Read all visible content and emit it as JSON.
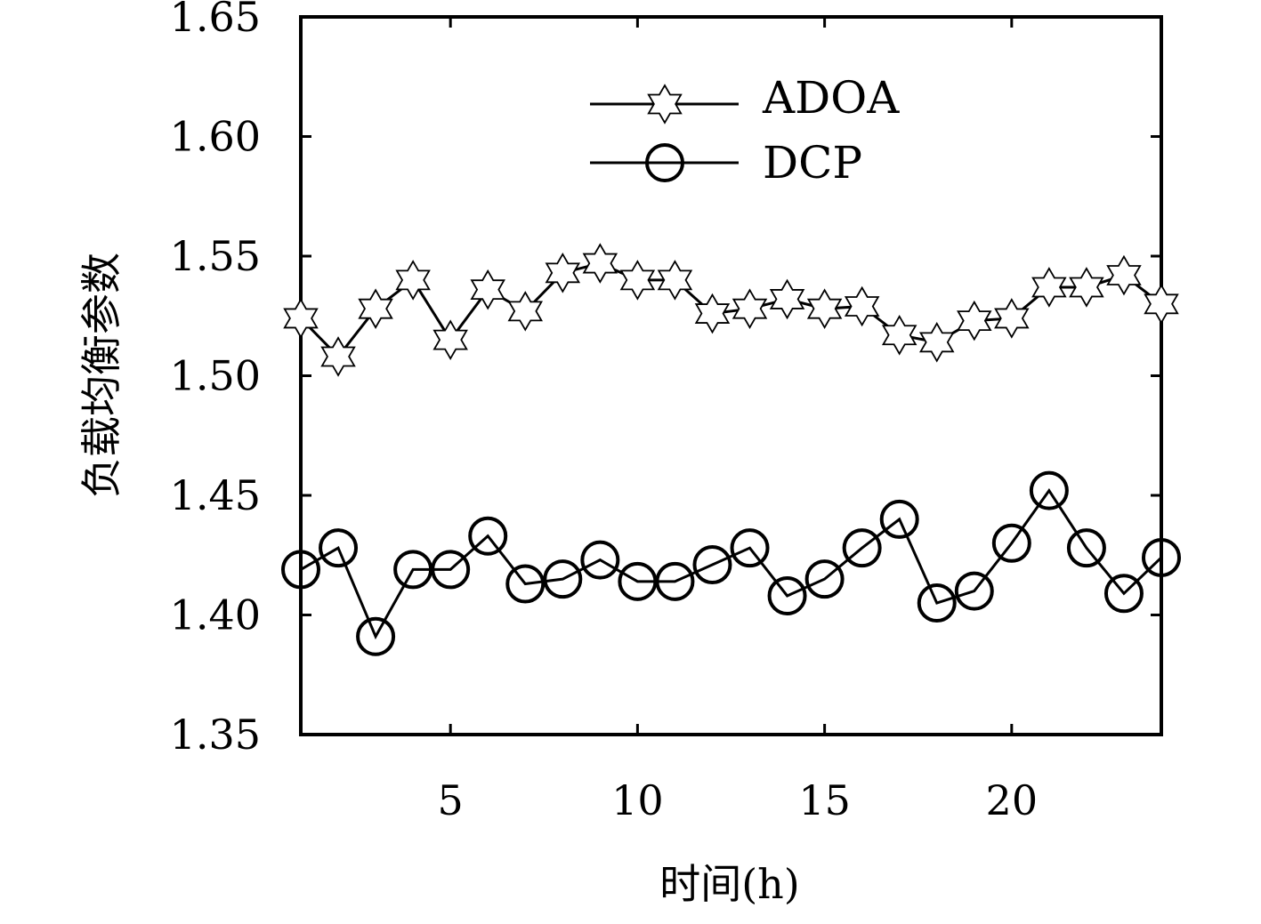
{
  "chart_data": {
    "type": "line",
    "title": "",
    "xlabel": "时间(h)",
    "ylabel": "负载均衡参数",
    "xlim": [
      1,
      24
    ],
    "ylim": [
      1.35,
      1.65
    ],
    "xticks": [
      5,
      10,
      15,
      20
    ],
    "yticks": [
      1.35,
      1.4,
      1.45,
      1.5,
      1.55,
      1.6,
      1.65
    ],
    "xtick_labels": [
      "5",
      "10",
      "15",
      "20"
    ],
    "ytick_labels": [
      "1.35",
      "1.40",
      "1.45",
      "1.50",
      "1.55",
      "1.60",
      "1.65"
    ],
    "grid": false,
    "legend_position": "top-center",
    "x": [
      1,
      2,
      3,
      4,
      5,
      6,
      7,
      8,
      9,
      10,
      11,
      12,
      13,
      14,
      15,
      16,
      17,
      18,
      19,
      20,
      21,
      22,
      23,
      24
    ],
    "series": [
      {
        "name": "ADOA",
        "marker": "hexagram",
        "color": "#000000",
        "values": [
          1.524,
          1.508,
          1.528,
          1.54,
          1.515,
          1.536,
          1.527,
          1.543,
          1.547,
          1.54,
          1.54,
          1.526,
          1.528,
          1.532,
          1.528,
          1.529,
          1.517,
          1.514,
          1.523,
          1.524,
          1.537,
          1.537,
          1.542,
          1.53
        ]
      },
      {
        "name": "DCP",
        "marker": "circle",
        "color": "#000000",
        "values": [
          1.419,
          1.428,
          1.391,
          1.419,
          1.419,
          1.433,
          1.413,
          1.415,
          1.423,
          1.414,
          1.414,
          1.421,
          1.428,
          1.408,
          1.415,
          1.428,
          1.44,
          1.405,
          1.41,
          1.43,
          1.452,
          1.428,
          1.409,
          1.424
        ]
      }
    ]
  }
}
